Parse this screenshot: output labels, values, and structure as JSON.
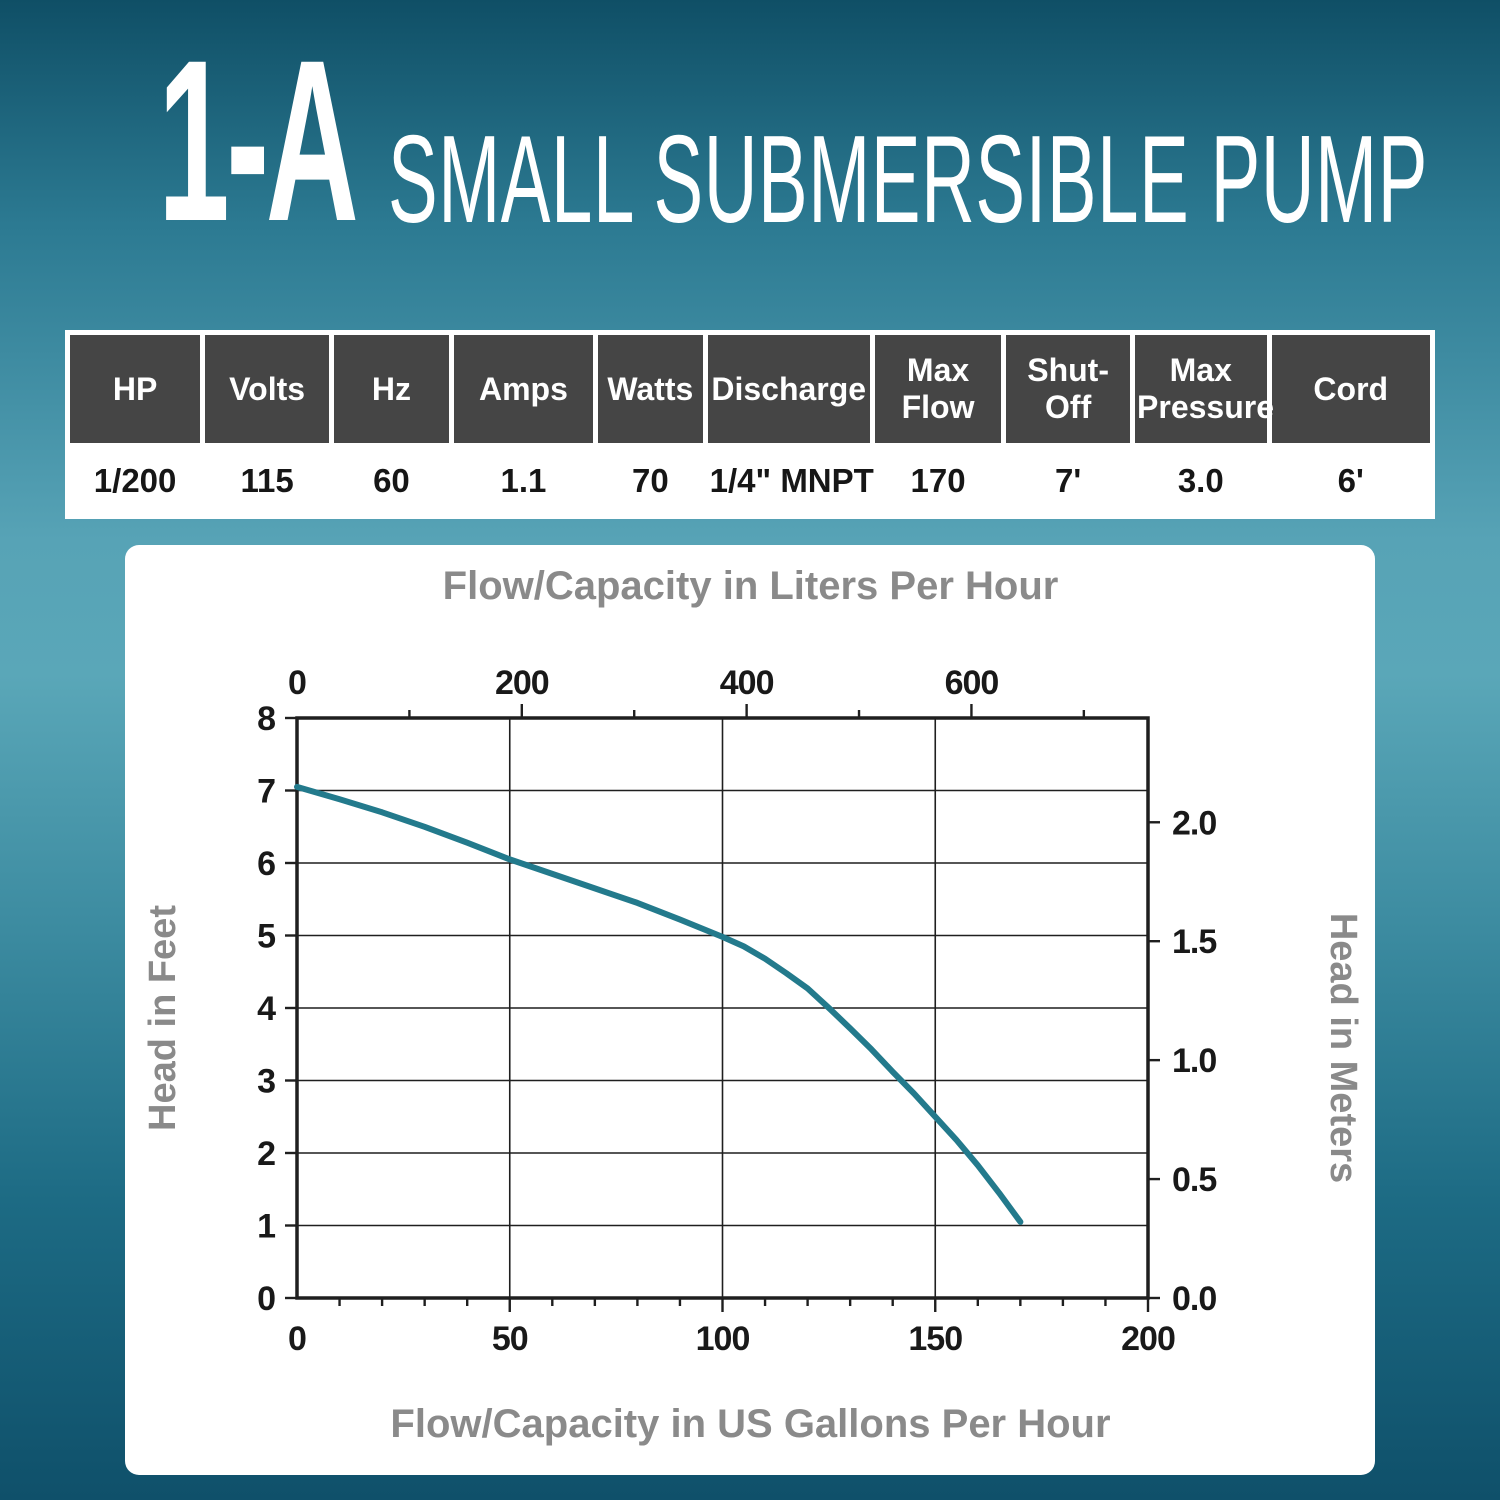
{
  "header": {
    "model_code": "1-A",
    "product_name": "SMALL SUBMERSIBLE PUMP"
  },
  "spec_table": {
    "columns": [
      {
        "label": "HP",
        "value": "1/200"
      },
      {
        "label": "Volts",
        "value": "115"
      },
      {
        "label": "Hz",
        "value": "60"
      },
      {
        "label": "Amps",
        "value": "1.1"
      },
      {
        "label": "Watts",
        "value": "70"
      },
      {
        "label": "Discharge",
        "value": "1/4\" MNPT"
      },
      {
        "label": "Max\nFlow",
        "value": "170"
      },
      {
        "label": "Shut-Off",
        "value": "7'"
      },
      {
        "label": "Max\nPressure",
        "value": "3.0"
      },
      {
        "label": "Cord",
        "value": "6'"
      }
    ]
  },
  "chart_data": {
    "type": "line",
    "title": "Flow/Capacity in Liters Per Hour",
    "xlabel": "Flow/Capacity in US Gallons Per Hour",
    "ylabel_left": "Head in Feet",
    "ylabel_right": "Head in Meters",
    "x_axis_bottom": {
      "unit": "US gallons per hour",
      "min": 0,
      "max": 200,
      "ticks": [
        0,
        50,
        100,
        150,
        200
      ]
    },
    "x_axis_top": {
      "unit": "liters per hour",
      "min": 0,
      "max": 757,
      "ticks": [
        0,
        200,
        400,
        600
      ]
    },
    "y_axis_left": {
      "unit": "feet",
      "min": 0,
      "max": 8,
      "ticks": [
        0,
        1,
        2,
        3,
        4,
        5,
        6,
        7,
        8
      ]
    },
    "y_axis_right": {
      "unit": "meters",
      "tick_values": [
        0,
        0.5,
        1,
        1.5,
        2
      ],
      "tick_labels": [
        "0.0",
        "0.5",
        "1.0",
        "1.5",
        "2.0"
      ]
    },
    "grid": true,
    "liters_per_gallon": 3.7854,
    "feet_per_meter": 3.28084,
    "series": [
      {
        "name": "1-A pump performance curve",
        "color": "#237a8c",
        "points_gph_ft": [
          [
            0,
            7.05
          ],
          [
            10,
            6.88
          ],
          [
            20,
            6.7
          ],
          [
            30,
            6.5
          ],
          [
            40,
            6.28
          ],
          [
            50,
            6.05
          ],
          [
            60,
            5.85
          ],
          [
            70,
            5.65
          ],
          [
            80,
            5.45
          ],
          [
            90,
            5.22
          ],
          [
            100,
            4.98
          ],
          [
            105,
            4.85
          ],
          [
            110,
            4.68
          ],
          [
            115,
            4.48
          ],
          [
            120,
            4.27
          ],
          [
            125,
            4.0
          ],
          [
            130,
            3.72
          ],
          [
            135,
            3.43
          ],
          [
            140,
            3.12
          ],
          [
            145,
            2.82
          ],
          [
            150,
            2.5
          ],
          [
            155,
            2.18
          ],
          [
            160,
            1.83
          ],
          [
            165,
            1.45
          ],
          [
            170,
            1.05
          ]
        ]
      }
    ]
  },
  "colors": {
    "accent_teal": "#237a8c",
    "table_header_bg": "#454545",
    "chart_label_gray": "#8a8a8a",
    "axis_ink": "#1f1f1f",
    "background_teal": "#3c8ba0"
  }
}
